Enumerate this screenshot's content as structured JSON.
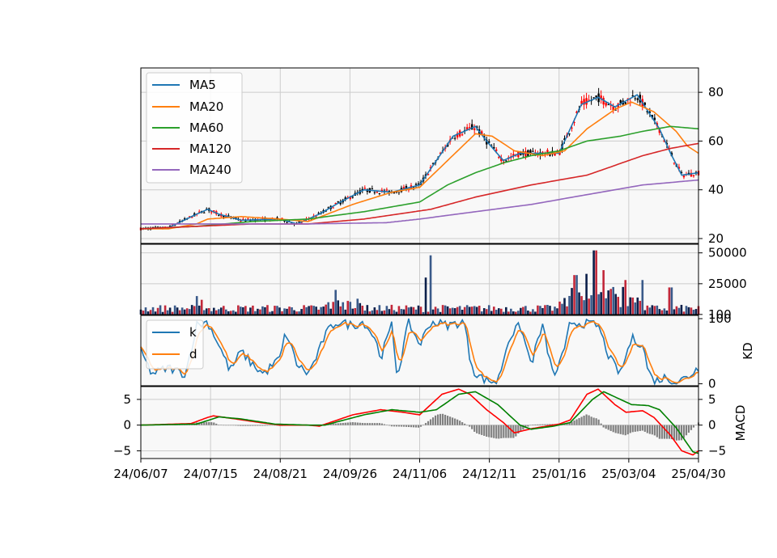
{
  "chart_data": {
    "type": "line",
    "x_tick_labels": [
      "24/06/07",
      "24/07/15",
      "24/08/21",
      "24/09/26",
      "24/11/06",
      "24/12/11",
      "25/01/16",
      "25/03/04",
      "25/04/30"
    ],
    "price_panel": {
      "type": "candlestick",
      "y_ticks": [
        "20",
        "40",
        "60",
        "80"
      ],
      "ylim": [
        18,
        90
      ],
      "grid": true,
      "legend_placement": "upper-left",
      "series": [
        {
          "name": "MA5",
          "color": "#1f77b4"
        },
        {
          "name": "MA20",
          "color": "#ff7f0e"
        },
        {
          "name": "MA60",
          "color": "#2ca02c"
        },
        {
          "name": "MA120",
          "color": "#d62728"
        },
        {
          "name": "MA240",
          "color": "#9467bd"
        }
      ],
      "ma_keypoints": {
        "MA5": [
          [
            0,
            24
          ],
          [
            0.05,
            24.5
          ],
          [
            0.1,
            30
          ],
          [
            0.12,
            32
          ],
          [
            0.14,
            30
          ],
          [
            0.18,
            27.5
          ],
          [
            0.25,
            28
          ],
          [
            0.28,
            26
          ],
          [
            0.32,
            30
          ],
          [
            0.35,
            34
          ],
          [
            0.4,
            40
          ],
          [
            0.45,
            39
          ],
          [
            0.5,
            42
          ],
          [
            0.53,
            52
          ],
          [
            0.56,
            62
          ],
          [
            0.6,
            66
          ],
          [
            0.62,
            60
          ],
          [
            0.65,
            52
          ],
          [
            0.68,
            55
          ],
          [
            0.72,
            55
          ],
          [
            0.75,
            55
          ],
          [
            0.79,
            75
          ],
          [
            0.82,
            78
          ],
          [
            0.85,
            74
          ],
          [
            0.89,
            79
          ],
          [
            0.93,
            65
          ],
          [
            0.95,
            55
          ],
          [
            0.97,
            46
          ],
          [
            1,
            47
          ]
        ],
        "MA20": [
          [
            0,
            24
          ],
          [
            0.05,
            24
          ],
          [
            0.1,
            26
          ],
          [
            0.12,
            28
          ],
          [
            0.18,
            29
          ],
          [
            0.25,
            28
          ],
          [
            0.3,
            27
          ],
          [
            0.38,
            34
          ],
          [
            0.45,
            39
          ],
          [
            0.5,
            41
          ],
          [
            0.55,
            52
          ],
          [
            0.6,
            63
          ],
          [
            0.63,
            62
          ],
          [
            0.67,
            56
          ],
          [
            0.72,
            54
          ],
          [
            0.76,
            56
          ],
          [
            0.8,
            65
          ],
          [
            0.85,
            73
          ],
          [
            0.88,
            76
          ],
          [
            0.92,
            72
          ],
          [
            0.96,
            64
          ],
          [
            0.98,
            58
          ],
          [
            1,
            55
          ]
        ],
        "MA60": [
          [
            0,
            24
          ],
          [
            0.1,
            25
          ],
          [
            0.2,
            27
          ],
          [
            0.3,
            28
          ],
          [
            0.4,
            31
          ],
          [
            0.5,
            35
          ],
          [
            0.55,
            42
          ],
          [
            0.6,
            47
          ],
          [
            0.65,
            51
          ],
          [
            0.7,
            54
          ],
          [
            0.75,
            56
          ],
          [
            0.8,
            60
          ],
          [
            0.86,
            62
          ],
          [
            0.9,
            64
          ],
          [
            0.95,
            66
          ],
          [
            1,
            65
          ]
        ],
        "MA120": [
          [
            0,
            24
          ],
          [
            0.1,
            25
          ],
          [
            0.2,
            26
          ],
          [
            0.3,
            26
          ],
          [
            0.4,
            28
          ],
          [
            0.52,
            32
          ],
          [
            0.6,
            37
          ],
          [
            0.7,
            42
          ],
          [
            0.8,
            46
          ],
          [
            0.9,
            54
          ],
          [
            0.95,
            57
          ],
          [
            1,
            59
          ]
        ],
        "MA240": [
          [
            0,
            26
          ],
          [
            0.15,
            26
          ],
          [
            0.3,
            26
          ],
          [
            0.44,
            26.5
          ],
          [
            0.5,
            28
          ],
          [
            0.6,
            31
          ],
          [
            0.7,
            34
          ],
          [
            0.8,
            38
          ],
          [
            0.9,
            42
          ],
          [
            0.95,
            43
          ],
          [
            1,
            44
          ]
        ]
      }
    },
    "volume_panel": {
      "type": "bar",
      "y_ticks": [
        "100",
        "25000",
        "50000"
      ],
      "ylim": [
        0,
        57000
      ],
      "grid": true
    },
    "kd_panel": {
      "ylabel": "KD",
      "y_ticks": [
        "0",
        "100"
      ],
      "ylim": [
        -3,
        105
      ],
      "legend_placement": "upper-left",
      "series": [
        {
          "name": "k",
          "color": "#1f77b4"
        },
        {
          "name": "d",
          "color": "#ff7f0e"
        }
      ]
    },
    "macd_panel": {
      "ylabel": "MACD",
      "y_ticks": [
        "−5",
        "0",
        "5"
      ],
      "ylim": [
        -6.5,
        7.5
      ],
      "grid": true,
      "series": [
        {
          "color": "#ff0000"
        },
        {
          "color": "#008000"
        }
      ],
      "dif_keypoints": [
        [
          0,
          0
        ],
        [
          0.09,
          0.3
        ],
        [
          0.12,
          1.5
        ],
        [
          0.13,
          1.8
        ],
        [
          0.17,
          1.2
        ],
        [
          0.22,
          0.4
        ],
        [
          0.25,
          0
        ],
        [
          0.3,
          0
        ],
        [
          0.32,
          -0.2
        ],
        [
          0.38,
          2
        ],
        [
          0.43,
          3
        ],
        [
          0.47,
          2.5
        ],
        [
          0.5,
          2
        ],
        [
          0.52,
          4
        ],
        [
          0.54,
          6
        ],
        [
          0.57,
          7
        ],
        [
          0.59,
          6
        ],
        [
          0.62,
          3
        ],
        [
          0.65,
          0.5
        ],
        [
          0.67,
          -1.5
        ],
        [
          0.7,
          -0.7
        ],
        [
          0.75,
          0.2
        ],
        [
          0.77,
          1
        ],
        [
          0.8,
          6
        ],
        [
          0.82,
          7
        ],
        [
          0.85,
          4
        ],
        [
          0.87,
          2.5
        ],
        [
          0.9,
          2.8
        ],
        [
          0.92,
          1.5
        ],
        [
          0.95,
          -2
        ],
        [
          0.97,
          -5
        ],
        [
          0.99,
          -5.8
        ],
        [
          1,
          -5
        ]
      ],
      "dea_keypoints": [
        [
          0,
          0
        ],
        [
          0.1,
          0.2
        ],
        [
          0.14,
          1.6
        ],
        [
          0.18,
          1.2
        ],
        [
          0.24,
          0.2
        ],
        [
          0.3,
          0
        ],
        [
          0.33,
          0
        ],
        [
          0.4,
          2
        ],
        [
          0.45,
          3
        ],
        [
          0.5,
          2.5
        ],
        [
          0.53,
          3
        ],
        [
          0.57,
          6
        ],
        [
          0.6,
          6.5
        ],
        [
          0.64,
          4
        ],
        [
          0.68,
          0
        ],
        [
          0.7,
          -0.8
        ],
        [
          0.74,
          -0.2
        ],
        [
          0.77,
          0.5
        ],
        [
          0.81,
          5
        ],
        [
          0.83,
          6.5
        ],
        [
          0.86,
          5
        ],
        [
          0.88,
          4
        ],
        [
          0.91,
          3.8
        ],
        [
          0.93,
          3
        ],
        [
          0.96,
          -0.5
        ],
        [
          0.99,
          -5.2
        ],
        [
          1,
          -5.5
        ]
      ]
    }
  }
}
